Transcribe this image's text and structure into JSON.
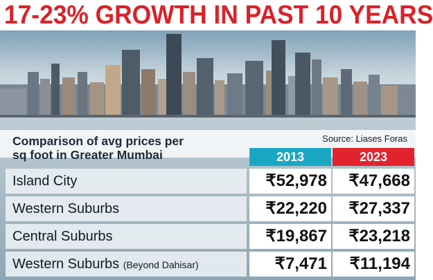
{
  "headline": "17-23% GROWTH IN PAST 10 YEARS",
  "source": "Source: Liases Foras",
  "subtitle_lines": [
    "Comparison of avg prices per",
    "sq foot in Greater Mumbai"
  ],
  "columns": [
    "2013",
    "2023"
  ],
  "rows": [
    {
      "label": "Island City",
      "note": "",
      "v2013": "₹52,978",
      "v2023": "₹47,668"
    },
    {
      "label": "Western Suburbs",
      "note": "",
      "v2013": "₹22,220",
      "v2023": "₹27,337"
    },
    {
      "label": "Central Suburbs",
      "note": "",
      "v2013": "₹19,867",
      "v2023": "₹23,218"
    },
    {
      "label": "Western Suburbs",
      "note": "(Beyond Dahisar)",
      "v2013": "₹7,471",
      "v2023": "₹11,194"
    }
  ],
  "colors": {
    "headline": "#d8232a",
    "col_2013": "#1aa7c4",
    "col_2023": "#e2232d"
  }
}
